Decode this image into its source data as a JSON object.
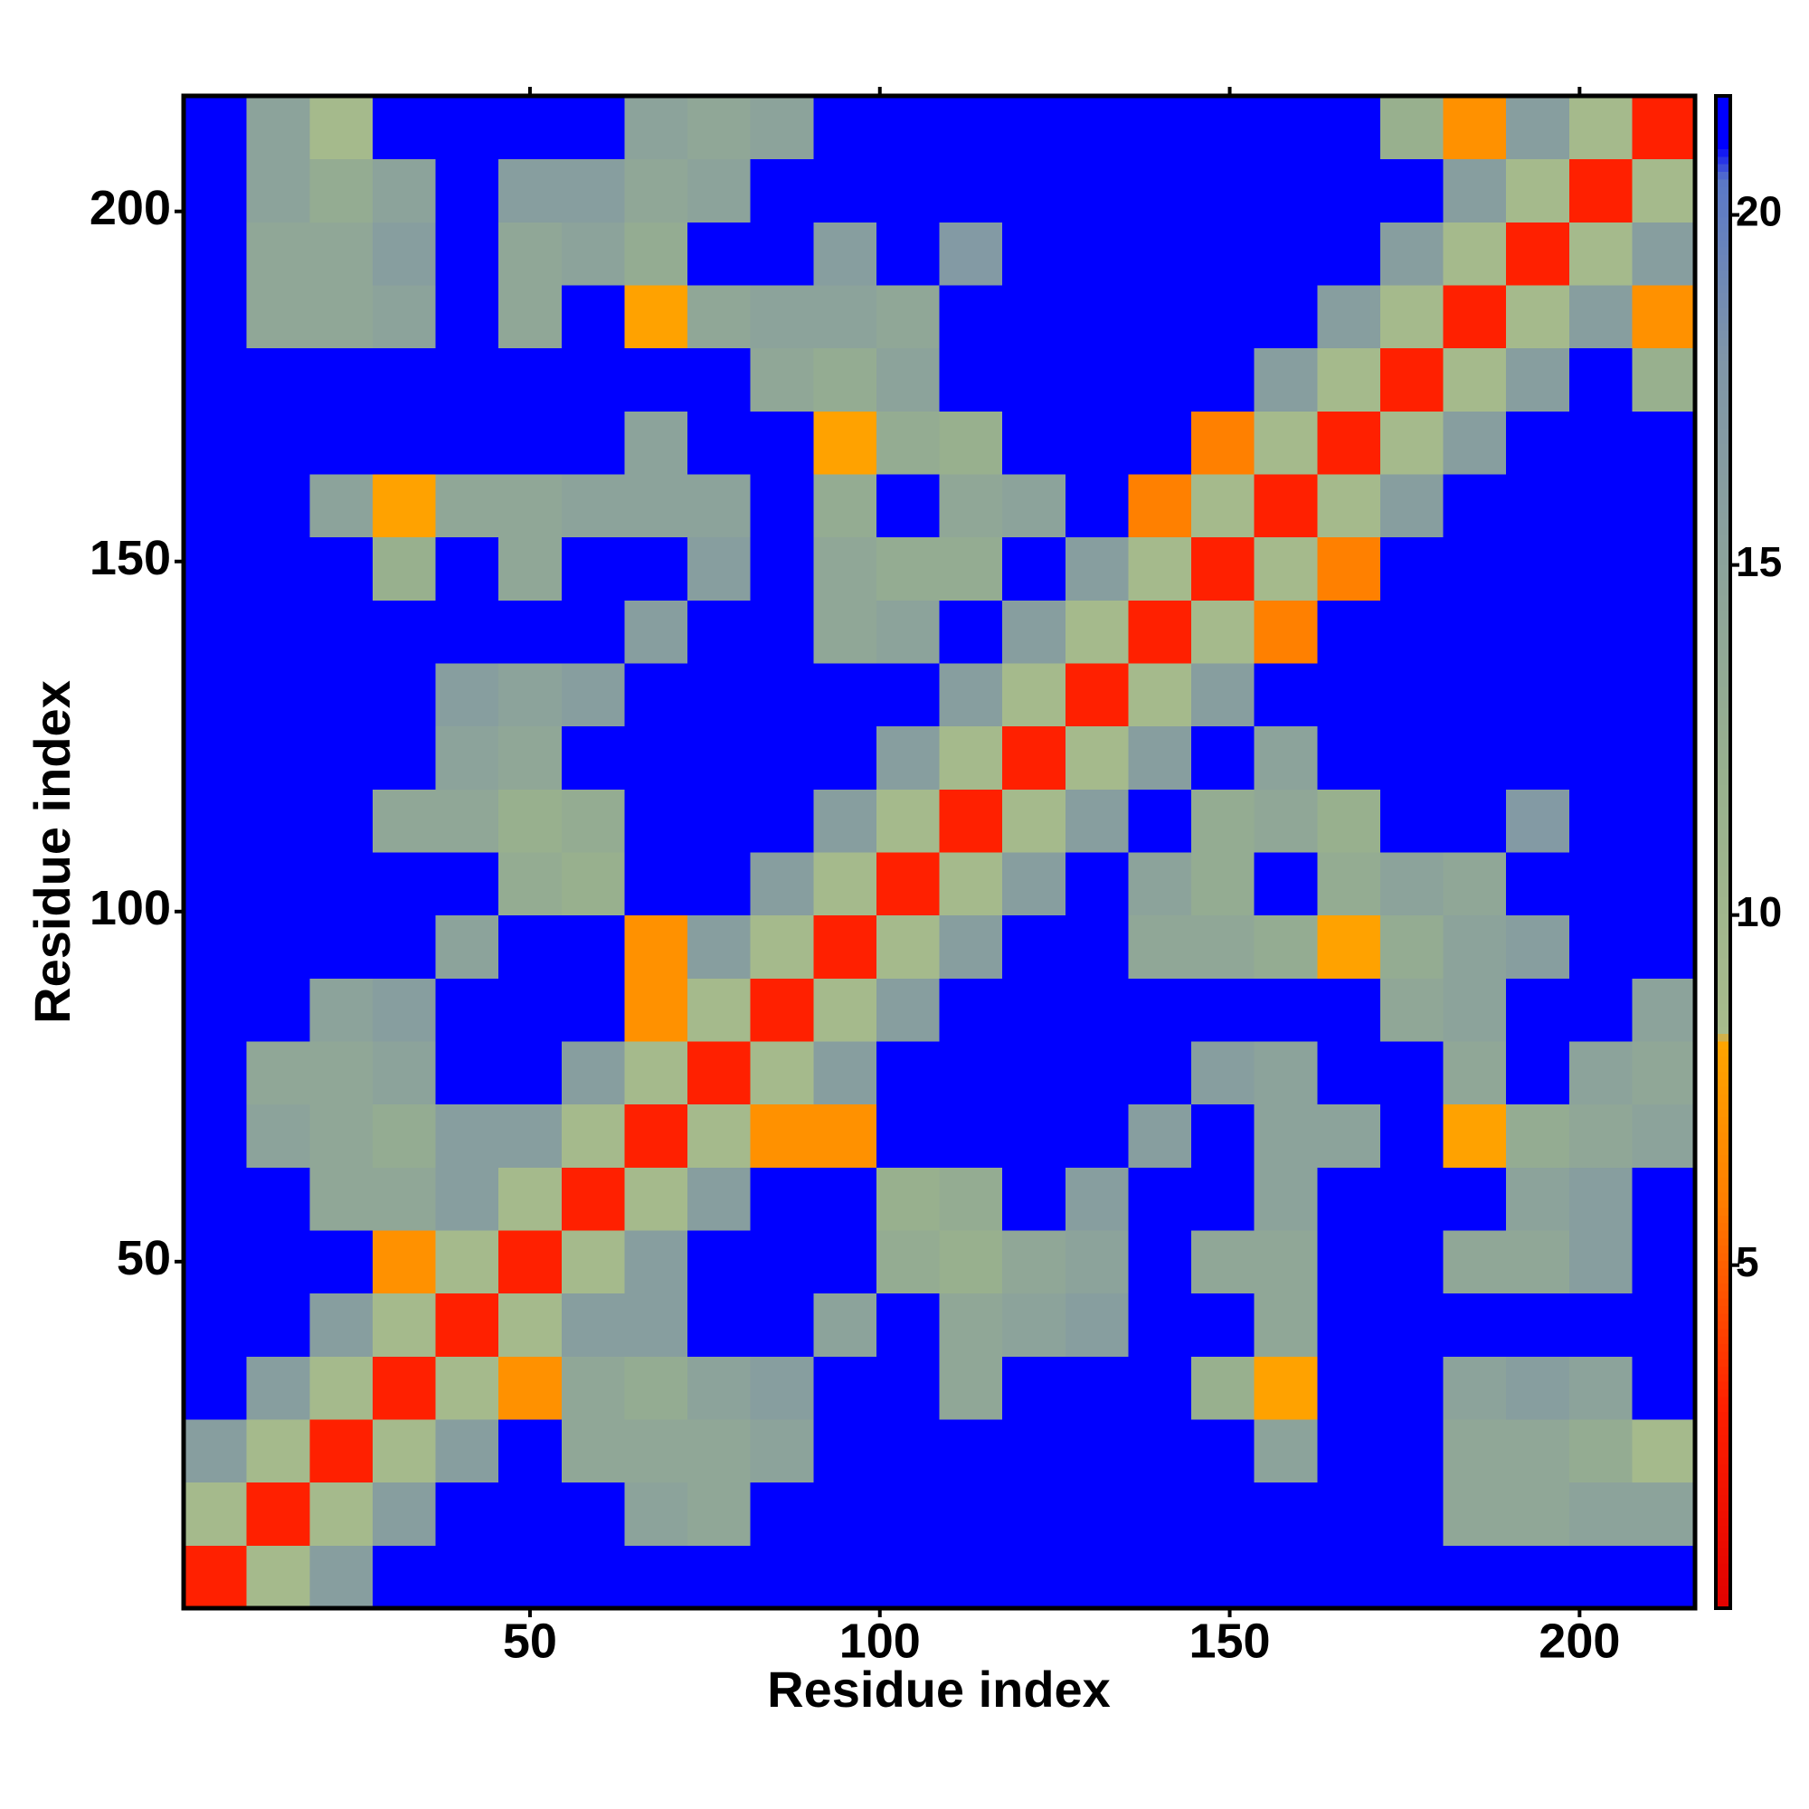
{
  "chart_data": {
    "type": "heatmap",
    "xlabel": "Residue index",
    "ylabel": "Residue index",
    "bins": [
      0.5,
      9.5,
      18.5,
      27.5,
      36.5,
      45.5,
      54.5,
      63.5,
      72.5,
      81.5,
      90.5,
      99.5,
      108.5,
      117.5,
      126.5,
      135.5,
      144.5,
      153.5,
      162.5,
      171.5,
      180.5,
      189.5,
      198.5,
      207.5,
      216.5
    ],
    "values": [
      [
        3,
        9,
        16,
        22,
        22,
        22,
        22,
        22,
        22,
        22,
        22,
        22,
        22,
        22,
        22,
        22,
        22,
        22,
        22,
        22,
        22,
        22,
        22,
        22
      ],
      [
        9,
        3,
        9,
        16,
        22,
        22,
        22,
        15,
        14,
        22,
        22,
        22,
        22,
        22,
        22,
        22,
        22,
        22,
        22,
        22,
        14,
        14,
        15,
        15
      ],
      [
        16,
        9,
        3,
        9,
        16,
        22,
        14,
        14,
        14,
        15,
        22,
        22,
        22,
        22,
        22,
        22,
        22,
        15,
        22,
        22,
        14,
        14,
        13,
        9
      ],
      [
        22,
        16,
        9,
        3,
        9,
        7,
        14,
        13,
        15,
        16,
        22,
        22,
        14,
        22,
        22,
        22,
        12,
        8,
        22,
        22,
        15,
        16,
        15,
        22
      ],
      [
        22,
        22,
        16,
        9,
        3,
        9,
        16,
        16,
        22,
        22,
        15,
        22,
        14,
        15,
        16,
        22,
        22,
        14,
        22,
        22,
        22,
        22,
        22,
        22
      ],
      [
        22,
        22,
        22,
        7,
        9,
        3,
        9,
        16,
        22,
        22,
        22,
        13,
        12,
        14,
        15,
        22,
        14,
        14,
        22,
        22,
        14,
        14,
        16,
        22
      ],
      [
        22,
        22,
        14,
        14,
        16,
        9,
        3,
        9,
        16,
        22,
        22,
        12,
        13,
        22,
        16,
        22,
        22,
        15,
        22,
        22,
        22,
        15,
        16,
        22
      ],
      [
        22,
        15,
        14,
        13,
        16,
        16,
        9,
        3,
        9,
        7,
        7,
        22,
        22,
        22,
        22,
        16,
        22,
        15,
        15,
        22,
        8,
        13,
        14,
        15
      ],
      [
        22,
        14,
        14,
        15,
        22,
        22,
        16,
        9,
        3,
        9,
        16,
        22,
        22,
        22,
        22,
        22,
        16,
        15,
        22,
        22,
        14,
        22,
        15,
        14
      ],
      [
        22,
        22,
        15,
        16,
        22,
        22,
        22,
        7,
        9,
        3,
        9,
        16,
        22,
        22,
        22,
        22,
        22,
        22,
        22,
        14,
        15,
        22,
        22,
        15
      ],
      [
        22,
        22,
        22,
        22,
        15,
        22,
        22,
        7,
        16,
        9,
        3,
        9,
        16,
        22,
        22,
        14,
        14,
        13,
        8,
        13,
        15,
        16,
        22,
        22
      ],
      [
        22,
        22,
        22,
        22,
        22,
        13,
        12,
        22,
        22,
        16,
        9,
        3,
        9,
        16,
        22,
        15,
        13,
        22,
        13,
        15,
        14,
        22,
        22,
        22
      ],
      [
        22,
        22,
        22,
        14,
        14,
        12,
        13,
        22,
        22,
        22,
        16,
        9,
        3,
        9,
        16,
        22,
        13,
        14,
        12,
        22,
        22,
        17,
        22,
        22
      ],
      [
        22,
        22,
        22,
        22,
        15,
        14,
        22,
        22,
        22,
        22,
        22,
        16,
        9,
        3,
        9,
        16,
        22,
        15,
        22,
        22,
        22,
        22,
        22,
        22
      ],
      [
        22,
        22,
        22,
        22,
        16,
        15,
        16,
        22,
        22,
        22,
        22,
        22,
        16,
        9,
        3,
        9,
        16,
        22,
        22,
        22,
        22,
        22,
        22,
        22
      ],
      [
        22,
        22,
        22,
        22,
        22,
        22,
        22,
        16,
        22,
        22,
        14,
        15,
        22,
        16,
        9,
        3,
        9,
        6,
        22,
        22,
        22,
        22,
        22,
        22
      ],
      [
        22,
        22,
        22,
        12,
        22,
        14,
        22,
        22,
        16,
        22,
        14,
        13,
        13,
        22,
        16,
        9,
        3,
        9,
        6,
        22,
        22,
        22,
        22,
        22
      ],
      [
        22,
        22,
        15,
        8,
        14,
        14,
        15,
        15,
        15,
        22,
        13,
        22,
        14,
        15,
        22,
        6,
        9,
        3,
        9,
        16,
        22,
        22,
        22,
        22
      ],
      [
        22,
        22,
        22,
        22,
        22,
        22,
        22,
        15,
        22,
        22,
        8,
        13,
        12,
        22,
        22,
        22,
        6,
        9,
        3,
        9,
        16,
        22,
        22,
        22
      ],
      [
        22,
        22,
        22,
        22,
        22,
        22,
        22,
        22,
        22,
        14,
        13,
        15,
        22,
        22,
        22,
        22,
        22,
        16,
        9,
        3,
        9,
        16,
        22,
        12
      ],
      [
        22,
        14,
        14,
        15,
        22,
        14,
        22,
        8,
        14,
        15,
        15,
        14,
        22,
        22,
        22,
        22,
        22,
        22,
        16,
        9,
        3,
        9,
        16,
        7
      ],
      [
        22,
        14,
        14,
        16,
        22,
        14,
        15,
        13,
        22,
        22,
        16,
        22,
        17,
        22,
        22,
        22,
        22,
        22,
        22,
        16,
        9,
        3,
        9,
        16
      ],
      [
        22,
        15,
        13,
        15,
        22,
        16,
        16,
        14,
        15,
        22,
        22,
        22,
        22,
        22,
        22,
        22,
        22,
        22,
        22,
        22,
        16,
        9,
        3,
        9
      ],
      [
        22,
        15,
        9,
        22,
        22,
        22,
        22,
        15,
        14,
        15,
        22,
        22,
        22,
        22,
        22,
        22,
        22,
        22,
        22,
        12,
        7,
        16,
        9,
        3
      ]
    ],
    "xlim": [
      0.5,
      216.5
    ],
    "ylim": [
      0.5,
      216.5
    ],
    "xticks": [
      50,
      100,
      150,
      200
    ],
    "yticks": [
      50,
      100,
      150,
      200
    ],
    "colorscale": [
      [
        0,
        "#e00000"
      ],
      [
        3,
        "#ff2000"
      ],
      [
        6,
        "#ff8000"
      ],
      [
        8.2,
        "#ffa500"
      ],
      [
        8.3,
        "#a8bc8c"
      ],
      [
        12,
        "#98b08e"
      ],
      [
        18,
        "#7f95a8"
      ],
      [
        20.5,
        "#5a78c8"
      ],
      [
        21,
        "#0000ff"
      ]
    ],
    "clim": [
      0.1,
      21.7
    ],
    "cticks": [
      5,
      10,
      15,
      20
    ]
  }
}
